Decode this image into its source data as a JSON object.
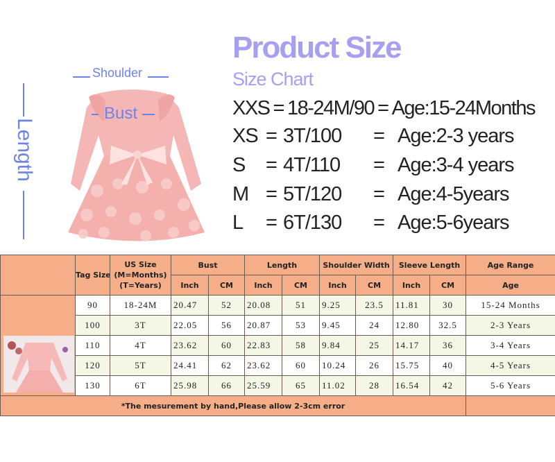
{
  "header": {
    "title": "Product Size",
    "subtitle": "Size Chart"
  },
  "size_lines": [
    {
      "size": "XXS",
      "eq1": "=",
      "tag": "18-24M/90",
      "eq2": "=",
      "age": "Age:15-24Months"
    },
    {
      "size": "XS",
      "eq1": "=",
      "tag": "3T/100",
      "eq2": "=",
      "age": "Age:2-3 years"
    },
    {
      "size": "S",
      "eq1": "=",
      "tag": "4T/110",
      "eq2": "=",
      "age": "Age:3-4 years"
    },
    {
      "size": "M",
      "eq1": "=",
      "tag": "5T/120",
      "eq2": "=",
      "age": "Age:4-5years"
    },
    {
      "size": "L",
      "eq1": "=",
      "tag": "6T/130",
      "eq2": "=",
      "age": "Age:5-6years"
    }
  ],
  "diagram": {
    "shoulder": "Shoulder",
    "bust": "Bust",
    "length": "Length",
    "label_color": "#6f82e8"
  },
  "table": {
    "headers": {
      "tag_size": "Tag Size",
      "us_size": [
        "US Size",
        "(M=Months)",
        "(T=Years)"
      ],
      "bust": "Bust",
      "length": "Length",
      "shoulder": "Shoulder Width",
      "sleeve": "Sleeve Length",
      "age_range": "Age Range",
      "inch": "Inch",
      "cm": "CM",
      "age": "Age"
    },
    "rows": [
      [
        "90",
        "18-24M",
        "20.47",
        "52",
        "20.08",
        "51",
        "9.25",
        "23.5",
        "11.81",
        "30",
        "15-24 Months"
      ],
      [
        "100",
        "3T",
        "22.05",
        "56",
        "20.87",
        "53",
        "9.45",
        "24",
        "12.80",
        "32.5",
        "2-3 Years"
      ],
      [
        "110",
        "4T",
        "23.62",
        "60",
        "22.83",
        "58",
        "9.84",
        "25",
        "14.17",
        "36",
        "3-4 Years"
      ],
      [
        "120",
        "5T",
        "24.41",
        "62",
        "23.62",
        "60",
        "10.24",
        "26",
        "15.75",
        "40",
        "4-5 Years"
      ],
      [
        "130",
        "6T",
        "25.98",
        "66",
        "25.59",
        "65",
        "11.02",
        "28",
        "16.54",
        "42",
        "5-6 Years"
      ]
    ],
    "footnote": "*The mesurement by hand,Please allow 2-3cm error",
    "header_color": "#f5ae87"
  }
}
